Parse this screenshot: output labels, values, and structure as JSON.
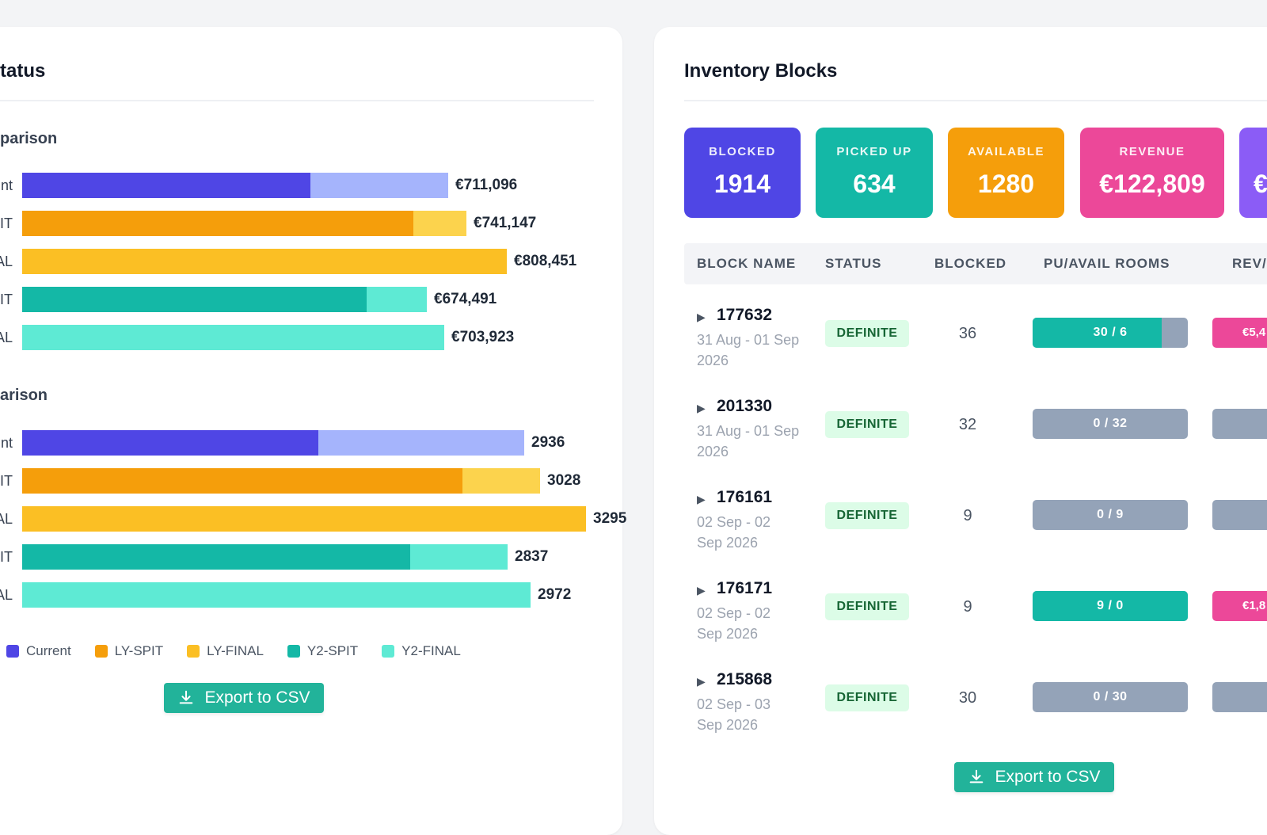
{
  "left_panel": {
    "title": "tatus",
    "revenue_section": {
      "title": "parison",
      "rows": [
        {
          "label": "nt",
          "value_text": "€711,096",
          "value": 711096,
          "dark_fraction": 0.676,
          "dark": "#4f46e5",
          "light": "#a5b4fc"
        },
        {
          "label": "IT",
          "value_text": "€741,147",
          "value": 741147,
          "dark_fraction": 0.881,
          "dark": "#f59e0b",
          "light": "#fcd34d"
        },
        {
          "label": "AL",
          "value_text": "€808,451",
          "value": 808451,
          "dark_fraction": 1.0,
          "dark": "#fbbf24",
          "light": "#fbbf24"
        },
        {
          "label": "IT",
          "value_text": "€674,491",
          "value": 674491,
          "dark_fraction": 0.852,
          "dark": "#14b8a6",
          "light": "#5eead4"
        },
        {
          "label": "AL",
          "value_text": "€703,923",
          "value": 703923,
          "dark_fraction": 1.0,
          "dark": "#5eead4",
          "light": "#5eead4"
        }
      ]
    },
    "rooms_section": {
      "title": "arison",
      "rows": [
        {
          "label": "nt",
          "value_text": "2936",
          "value": 2936,
          "dark_fraction": 0.59,
          "dark": "#4f46e5",
          "light": "#a5b4fc"
        },
        {
          "label": "IT",
          "value_text": "3028",
          "value": 3028,
          "dark_fraction": 0.85,
          "dark": "#f59e0b",
          "light": "#fcd34d"
        },
        {
          "label": "AL",
          "value_text": "3295",
          "value": 3295,
          "dark_fraction": 1.0,
          "dark": "#fbbf24",
          "light": "#fbbf24"
        },
        {
          "label": "IT",
          "value_text": "2837",
          "value": 2837,
          "dark_fraction": 0.8,
          "dark": "#14b8a6",
          "light": "#5eead4"
        },
        {
          "label": "AL",
          "value_text": "2972",
          "value": 2972,
          "dark_fraction": 1.0,
          "dark": "#5eead4",
          "light": "#5eead4"
        }
      ]
    },
    "legend": [
      {
        "label": "Current",
        "color": "#4f46e5"
      },
      {
        "label": "LY-SPIT",
        "color": "#f59e0b"
      },
      {
        "label": "LY-FINAL",
        "color": "#fbbf24"
      },
      {
        "label": "Y2-SPIT",
        "color": "#14b8a6"
      },
      {
        "label": "Y2-FINAL",
        "color": "#5eead4"
      }
    ],
    "export_label": "Export to CSV"
  },
  "right_panel": {
    "title": "Inventory Blocks",
    "stats": [
      {
        "label": "BLOCKED",
        "value": "1914",
        "color": "#4f46e5"
      },
      {
        "label": "PICKED UP",
        "value": "634",
        "color": "#14b8a6"
      },
      {
        "label": "AVAILABLE",
        "value": "1280",
        "color": "#f59e0b"
      },
      {
        "label": "REVENUE",
        "value": "€122,809",
        "color": "#ec4899"
      },
      {
        "label": "",
        "value": "€",
        "color": "#8b5cf6"
      }
    ],
    "columns": [
      "BLOCK NAME",
      "STATUS",
      "BLOCKED",
      "PU/AVAIL ROOMS",
      "REV/"
    ],
    "rows": [
      {
        "id": "177632",
        "dates": "31 Aug - 01 Sep 2026",
        "status": "DEFINITE",
        "blocked": "36",
        "rooms": "30 / 6",
        "pickup_fraction": 0.83,
        "rev": "€5,4",
        "rev_color": "#ec4899"
      },
      {
        "id": "201330",
        "dates": "31 Aug - 01 Sep 2026",
        "status": "DEFINITE",
        "blocked": "32",
        "rooms": "0 / 32",
        "pickup_fraction": 0,
        "rev": "",
        "rev_color": "#94a3b8"
      },
      {
        "id": "176161",
        "dates": "02 Sep - 02 Sep 2026",
        "status": "DEFINITE",
        "blocked": "9",
        "rooms": "0 / 9",
        "pickup_fraction": 0,
        "rev": "",
        "rev_color": "#94a3b8"
      },
      {
        "id": "176171",
        "dates": "02 Sep - 02 Sep 2026",
        "status": "DEFINITE",
        "blocked": "9",
        "rooms": "9 / 0",
        "pickup_fraction": 1.0,
        "rev": "€1,8",
        "rev_color": "#ec4899"
      },
      {
        "id": "215868",
        "dates": "02 Sep - 03 Sep 2026",
        "status": "DEFINITE",
        "blocked": "30",
        "rooms": "0 / 30",
        "pickup_fraction": 0,
        "rev": "",
        "rev_color": "#94a3b8"
      }
    ],
    "export_label": "Export to CSV"
  }
}
